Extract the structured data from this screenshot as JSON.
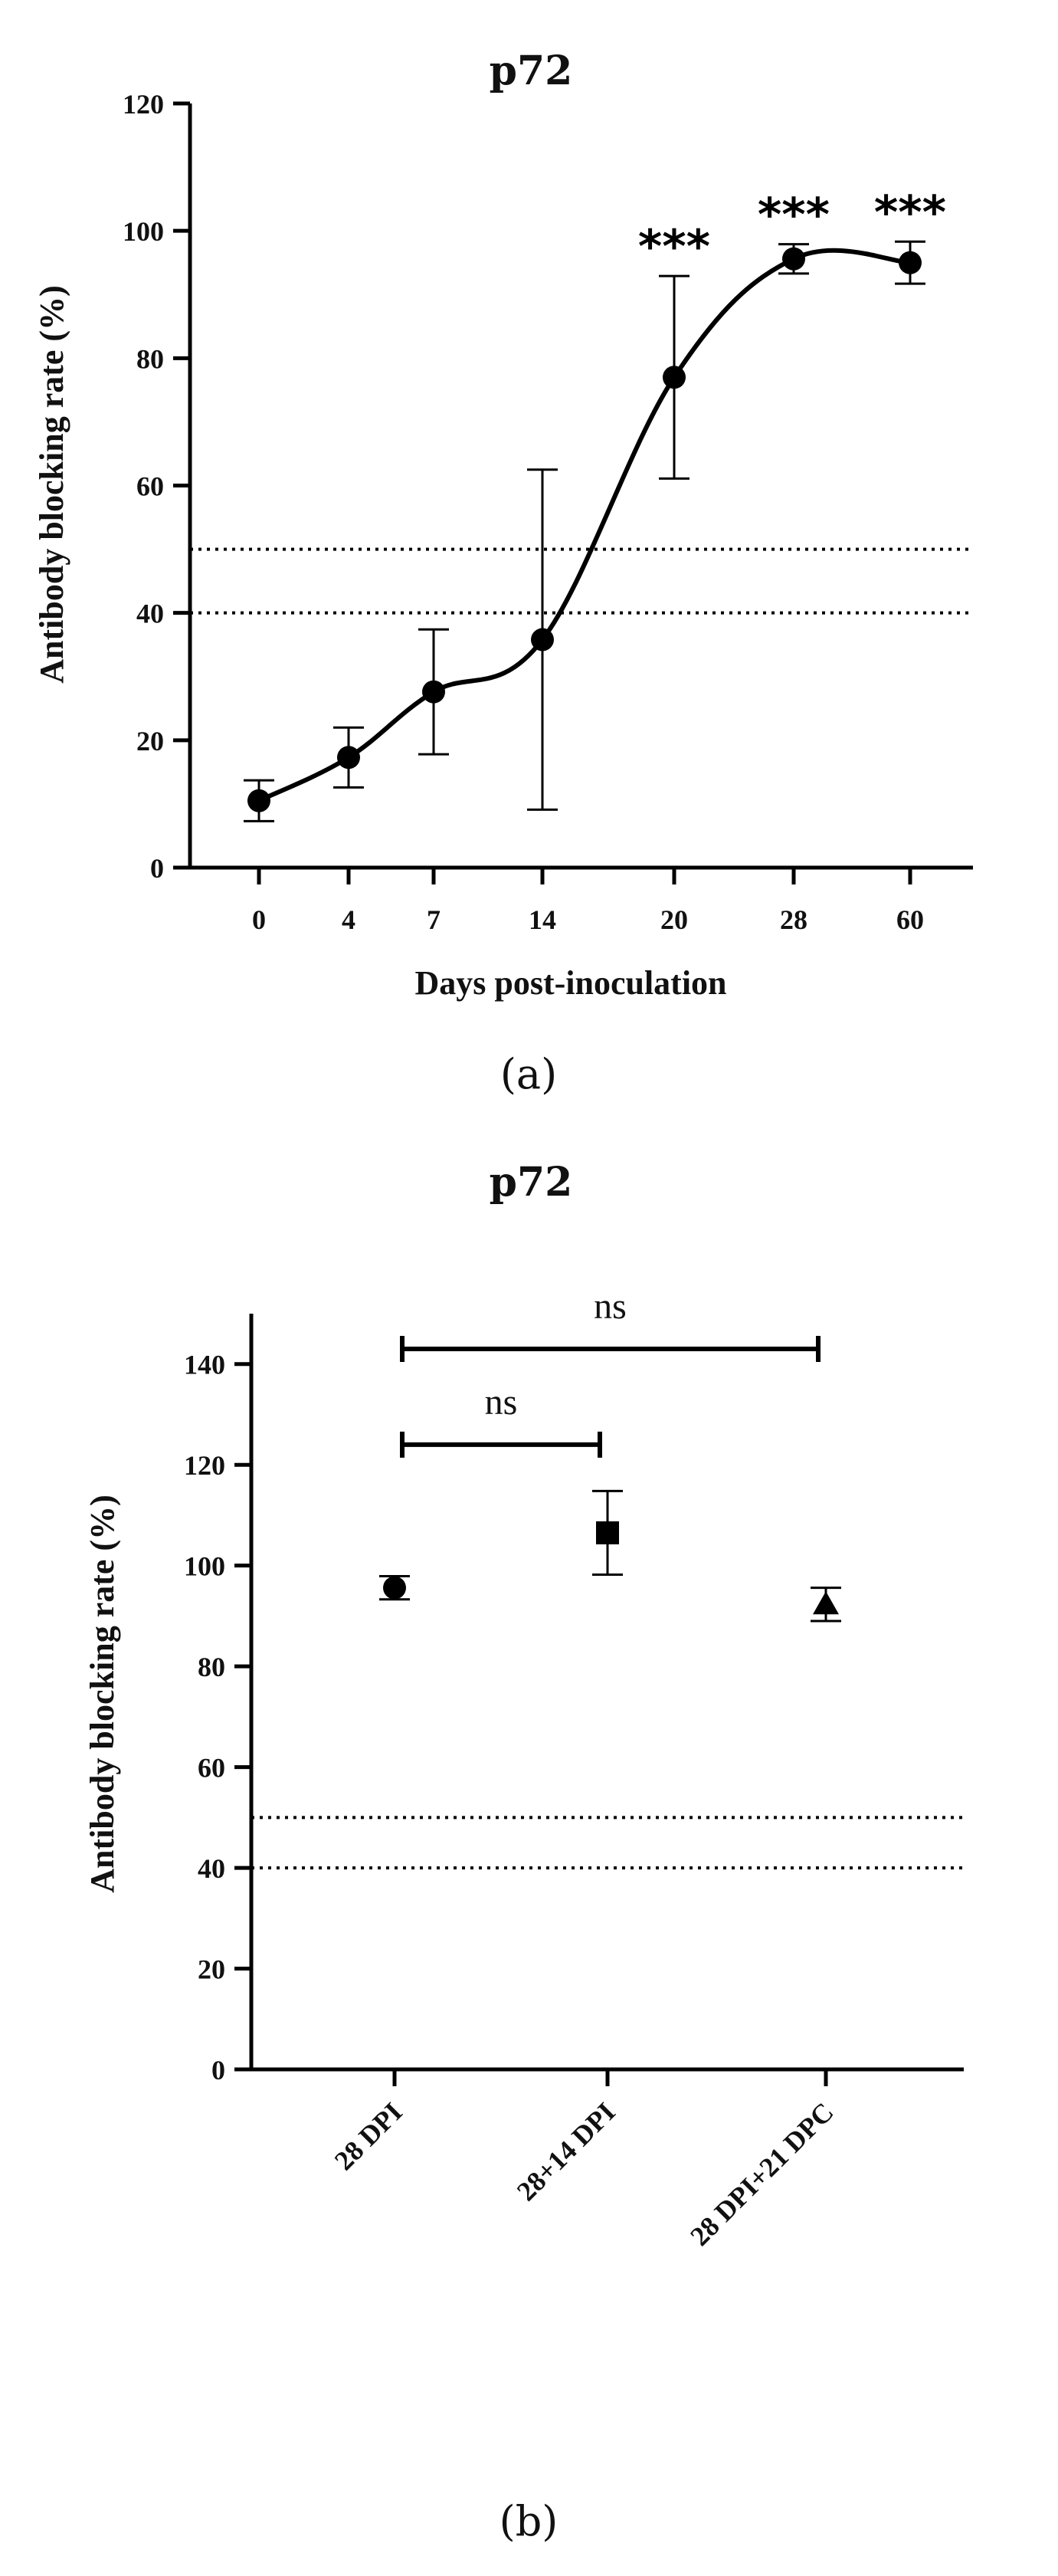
{
  "chart_data": [
    {
      "type": "line",
      "panel_label": "(a)",
      "title": "p72",
      "xlabel": "Days post-inoculation",
      "ylabel": "Antibody blocking rate (%)",
      "categories": [
        "0",
        "4",
        "7",
        "14",
        "20",
        "28",
        "60"
      ],
      "values": [
        10.5,
        17.3,
        27.6,
        35.8,
        77.0,
        95.6,
        95.0
      ],
      "errors": [
        3.2,
        4.7,
        9.8,
        26.7,
        15.9,
        2.3,
        3.3
      ],
      "y_ticks": [
        "0",
        "20",
        "40",
        "60",
        "80",
        "100",
        "120"
      ],
      "ylim": [
        0,
        120
      ],
      "reference_lines": [
        40,
        50
      ],
      "annotations": [
        {
          "category": "20",
          "text": "***"
        },
        {
          "category": "28",
          "text": "***"
        },
        {
          "category": "60",
          "text": "***"
        }
      ]
    },
    {
      "type": "scatter",
      "panel_label": "(b)",
      "title": "p72",
      "xlabel": "",
      "ylabel": "Antibody blocking rate (%)",
      "categories": [
        "28 DPI",
        "28+14 DPI",
        "28 DPI+21 DPC"
      ],
      "values": [
        95.6,
        106.5,
        92.3
      ],
      "errors": [
        2.3,
        8.3,
        3.3
      ],
      "markers": [
        "circle",
        "square",
        "triangle"
      ],
      "y_ticks": [
        "0",
        "20",
        "40",
        "60",
        "80",
        "100",
        "120",
        "140"
      ],
      "ylim": [
        0,
        150
      ],
      "reference_lines": [
        40,
        50
      ],
      "comparisons": [
        {
          "from": "28 DPI",
          "to": "28+14 DPI",
          "label": "ns",
          "y": 124
        },
        {
          "from": "28 DPI",
          "to": "28 DPI+21 DPC",
          "label": "ns",
          "y": 143
        }
      ]
    }
  ]
}
